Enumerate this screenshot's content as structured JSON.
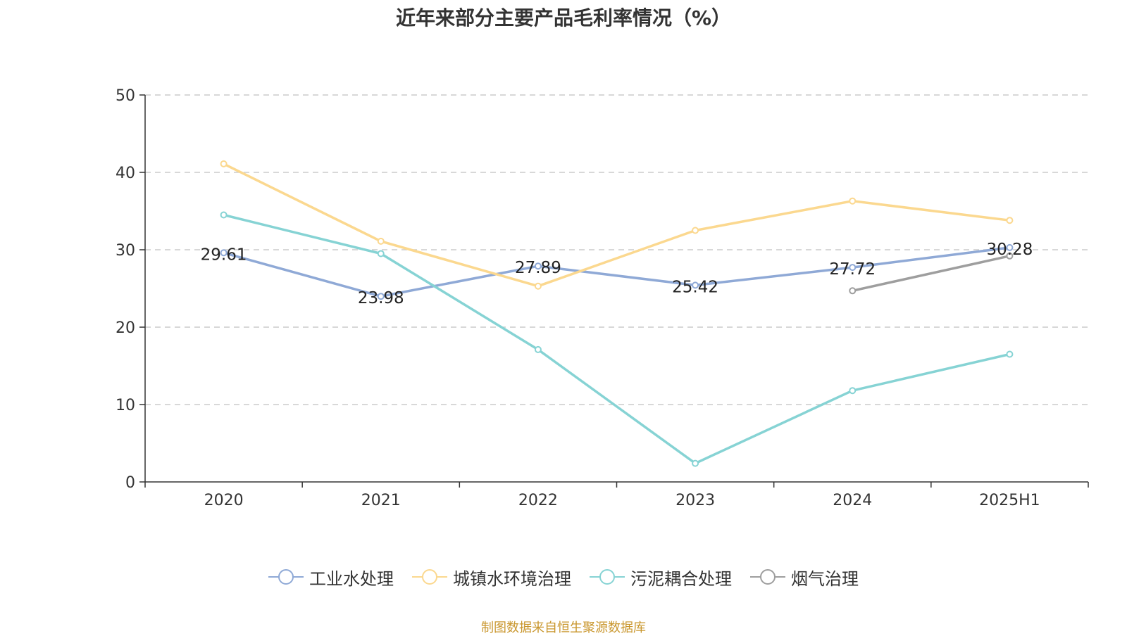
{
  "chart_data": {
    "type": "line",
    "title": "近年来部分主要产品毛利率情况（%）",
    "categories": [
      "2020",
      "2021",
      "2022",
      "2023",
      "2024",
      "2025H1"
    ],
    "ylim": [
      0,
      50
    ],
    "yticks": [
      0,
      10,
      20,
      30,
      40,
      50
    ],
    "grid": true,
    "legend_position": "bottom",
    "series": [
      {
        "name": "工业水处理",
        "color": "#8fa9d6",
        "values": [
          29.61,
          23.98,
          27.89,
          25.42,
          27.72,
          30.28
        ],
        "show_labels": true
      },
      {
        "name": "城镇水环境治理",
        "color": "#fbd88f",
        "values": [
          41.1,
          31.1,
          25.3,
          32.5,
          36.3,
          33.8
        ],
        "show_labels": false
      },
      {
        "name": "污泥耦合处理",
        "color": "#86d3d4",
        "values": [
          34.5,
          29.5,
          17.1,
          2.4,
          11.8,
          16.5
        ],
        "show_labels": false
      },
      {
        "name": "烟气治理",
        "color": "#9e9e9e",
        "values": [
          null,
          null,
          null,
          null,
          24.7,
          29.2
        ],
        "show_labels": false
      }
    ]
  },
  "footer": {
    "source": "制图数据来自恒生聚源数据库"
  }
}
